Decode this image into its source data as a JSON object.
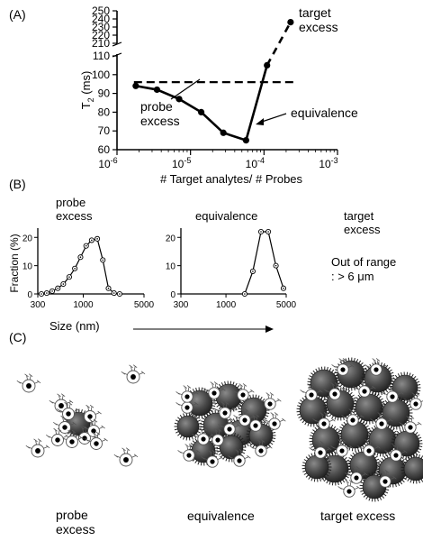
{
  "panels": {
    "a": "(A)",
    "b": "(B)",
    "c": "(C)"
  },
  "panel_a": {
    "ylabel": "T2 (ms)",
    "xlabel": "# Target analytes/ # Probes",
    "annotations": {
      "target_excess": [
        "target",
        "excess"
      ],
      "probe_excess": [
        "probe",
        "excess"
      ],
      "equivalence": "equivalence"
    }
  },
  "panel_b": {
    "ylabel": "Fraction (%)",
    "xlabel": "Size (nm)",
    "probe_excess_title": [
      "probe",
      "excess"
    ],
    "equivalence_title": "equivalence",
    "target_excess_title": [
      "target",
      "excess"
    ],
    "out_of_range": [
      "Out of range",
      ": > 6 μm"
    ]
  },
  "panel_c": {
    "probe_excess": [
      "probe",
      "excess"
    ],
    "equivalence": "equivalence",
    "target_excess": "target excess"
  },
  "chart_data": [
    {
      "type": "line",
      "xlabel": "# Target analytes/ # Probes",
      "ylabel": "T2 (ms)",
      "x_scale": "log",
      "xlim": [
        1e-06,
        0.001
      ],
      "x_ticks": [
        "10-6",
        "10-5",
        "10-4",
        "10-3"
      ],
      "y_axis_break": true,
      "y_ticks_lower": [
        60,
        70,
        80,
        90,
        100,
        110
      ],
      "y_ticks_upper": [
        210,
        220,
        230,
        240,
        250
      ],
      "x": [
        1.8e-06,
        3.5e-06,
        7e-06,
        1.4e-05,
        2.8e-05,
        5.7e-05,
        0.00011,
        0.00023
      ],
      "values": [
        94,
        92,
        87,
        80,
        69,
        65,
        105,
        236
      ],
      "reference_line": 96,
      "grid": false
    },
    {
      "type": "line",
      "title": "probe excess",
      "xlabel": "Size (nm)",
      "ylabel": "Fraction (%)",
      "x_scale": "log",
      "xlim": [
        300,
        5000
      ],
      "ylim": [
        0,
        22
      ],
      "x_ticks": [
        300,
        1000,
        5000
      ],
      "y_ticks": [
        0,
        10,
        20
      ],
      "x": [
        330,
        380,
        440,
        510,
        590,
        690,
        800,
        930,
        1080,
        1250,
        1450,
        1680,
        1950,
        2260,
        2620
      ],
      "values": [
        0,
        0.3,
        1,
        2,
        3.5,
        6,
        9,
        13,
        17,
        19,
        19.5,
        12,
        2,
        0.3,
        0
      ]
    },
    {
      "type": "line",
      "title": "equivalence",
      "xlabel": "Size (nm)",
      "ylabel": "Fraction (%)",
      "x_scale": "log",
      "xlim": [
        300,
        5000
      ],
      "ylim": [
        0,
        22
      ],
      "x_ticks": [
        300,
        1000,
        5000
      ],
      "y_ticks": [
        0,
        10,
        20
      ],
      "x": [
        1650,
        2050,
        2550,
        3100,
        3800,
        4650
      ],
      "values": [
        0,
        8,
        22,
        22,
        10,
        2
      ]
    }
  ]
}
